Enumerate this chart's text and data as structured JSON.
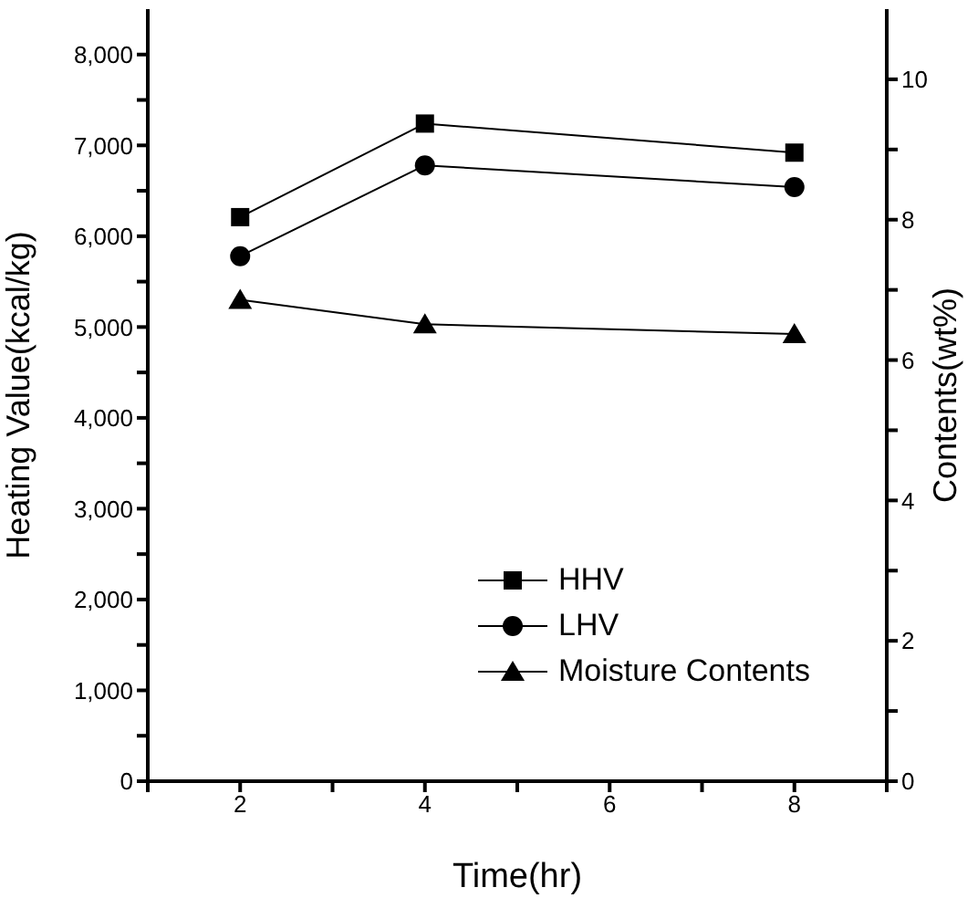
{
  "chart_data": {
    "type": "line",
    "xlabel": "Time(hr)",
    "ylabel": "Heating Value(kcal/kg)",
    "y2label": "Contents(wt%)",
    "x": [
      2,
      4,
      8
    ],
    "series": [
      {
        "name": "HHV",
        "color": "#000000",
        "marker": "square",
        "values": [
          6210,
          7240,
          6920
        ]
      },
      {
        "name": "LHV",
        "color": "#000000",
        "marker": "circle",
        "values": [
          5780,
          6780,
          6540
        ]
      },
      {
        "name": "Moisture Contents",
        "color": "#000000",
        "marker": "triangle",
        "axis": "y2",
        "values": [
          6.86,
          6.51,
          6.37
        ]
      }
    ],
    "xlim": [
      1,
      9
    ],
    "xticks": [
      {
        "value": 1,
        "label": null
      },
      2,
      {
        "value": 3,
        "label": null
      },
      4,
      {
        "value": 5,
        "label": null
      },
      6,
      {
        "value": 7,
        "label": null
      },
      8,
      {
        "value": 9,
        "label": null
      }
    ],
    "ylim": [
      0,
      8500
    ],
    "yticks": [
      0,
      {
        "value": 500,
        "label": null
      },
      {
        "value": 1000,
        "label": "1,000"
      },
      {
        "value": 1500,
        "label": null
      },
      {
        "value": 2000,
        "label": "2,000"
      },
      {
        "value": 2500,
        "label": null
      },
      {
        "value": 3000,
        "label": "3,000"
      },
      {
        "value": 3500,
        "label": null
      },
      {
        "value": 4000,
        "label": "4,000"
      },
      {
        "value": 4500,
        "label": null
      },
      {
        "value": 5000,
        "label": "5,000"
      },
      {
        "value": 5500,
        "label": null
      },
      {
        "value": 6000,
        "label": "6,000"
      },
      {
        "value": 6500,
        "label": null
      },
      {
        "value": 7000,
        "label": "7,000"
      },
      {
        "value": 7500,
        "label": null
      },
      {
        "value": 8000,
        "label": "8,000"
      }
    ],
    "y2lim": [
      0,
      11
    ],
    "y2ticks": [
      0,
      {
        "value": 1,
        "label": null
      },
      2,
      {
        "value": 3,
        "label": null
      },
      4,
      {
        "value": 5,
        "label": null
      },
      6,
      {
        "value": 7,
        "label": null
      },
      8,
      {
        "value": 9,
        "label": null
      },
      10
    ],
    "legend": "bottom right",
    "grid": false,
    "line_style": "solid"
  }
}
